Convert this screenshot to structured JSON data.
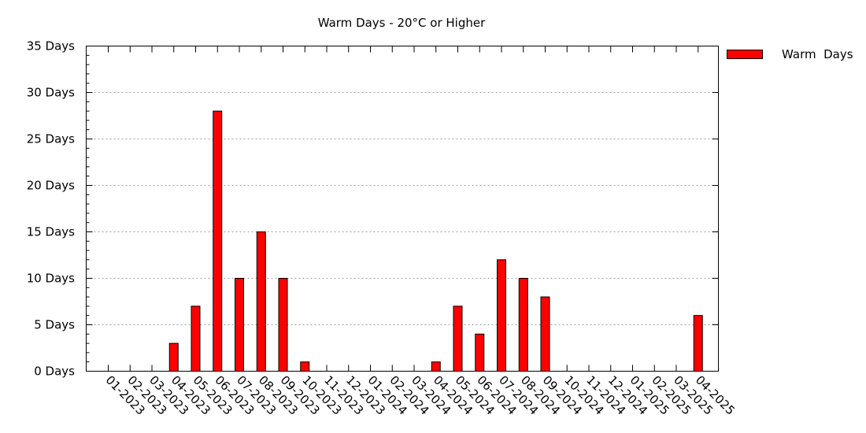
{
  "chart_data": {
    "type": "bar",
    "title": "Warm Days - 20°C or Higher",
    "xlabel": "",
    "ylabel": "",
    "ylim": [
      0,
      35
    ],
    "y_ticks": [
      0,
      5,
      10,
      15,
      20,
      25,
      30,
      35
    ],
    "y_tick_labels": [
      "0 Days",
      "5 Days",
      "10 Days",
      "15 Days",
      "20 Days",
      "25 Days",
      "30 Days",
      "35 Days"
    ],
    "grid": true,
    "legend_position": "top-right",
    "colors": {
      "bar": "#ff0000",
      "bar_stroke": "#000000",
      "grid": "#a0a0a0"
    },
    "categories": [
      "01-2023",
      "02-2023",
      "03-2023",
      "04-2023",
      "05-2023",
      "06-2023",
      "07-2023",
      "08-2023",
      "09-2023",
      "10-2023",
      "11-2023",
      "12-2023",
      "01-2024",
      "02-2024",
      "03-2024",
      "04-2024",
      "05-2024",
      "06-2024",
      "07-2024",
      "08-2024",
      "09-2024",
      "10-2024",
      "11-2024",
      "12-2024",
      "01-2025",
      "02-2025",
      "03-2025",
      "04-2025"
    ],
    "series": [
      {
        "name": "Warm  Days",
        "values": [
          0,
          0,
          0,
          3,
          7,
          28,
          10,
          15,
          10,
          1,
          0,
          0,
          0,
          0,
          0,
          1,
          7,
          4,
          12,
          10,
          8,
          0,
          0,
          0,
          0,
          0,
          0,
          6
        ]
      }
    ]
  }
}
